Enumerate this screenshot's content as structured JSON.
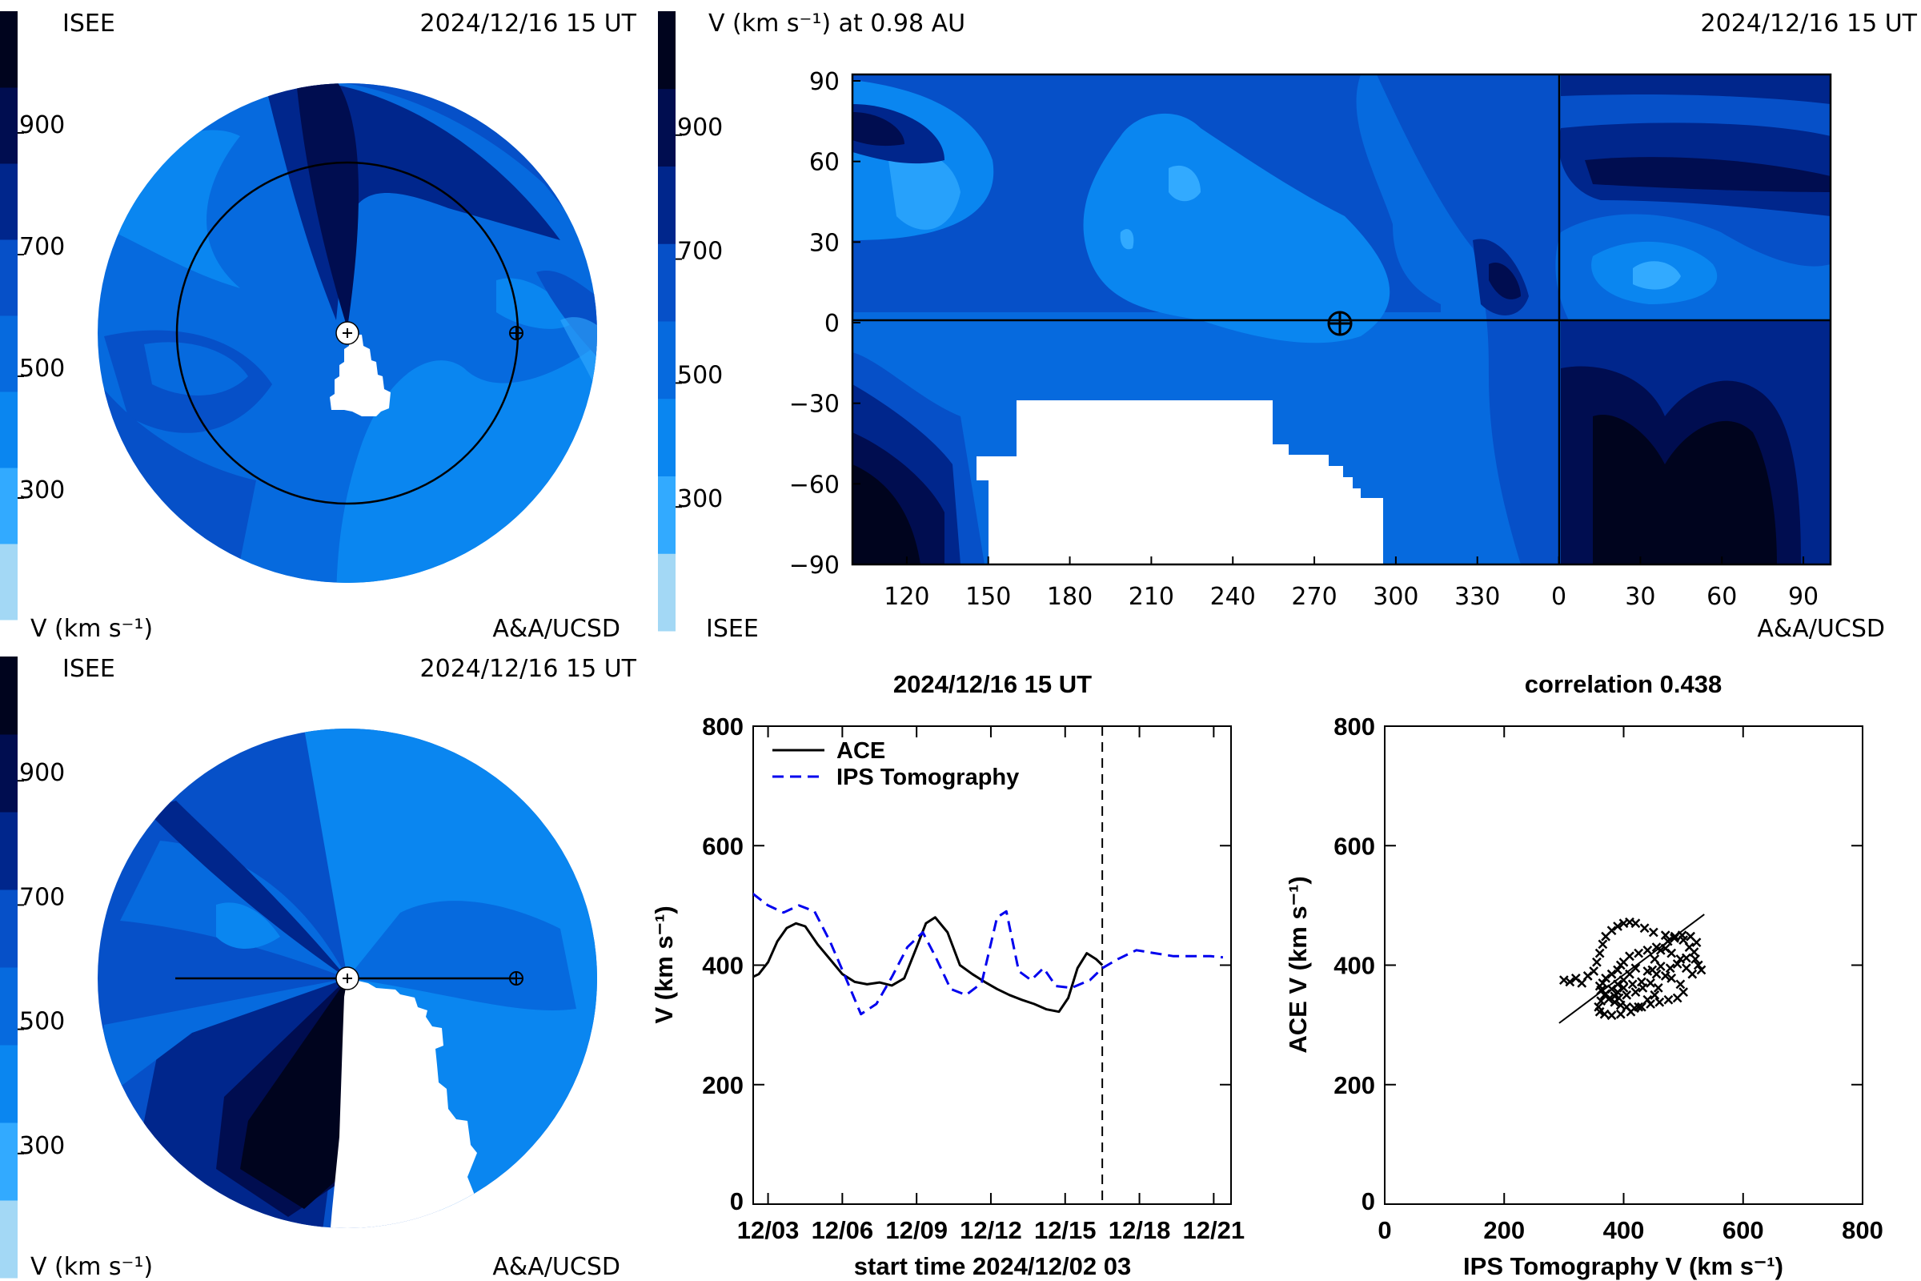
{
  "colorbar": {
    "colors": [
      "#a3d8f5",
      "#32aaff",
      "#0a86f0",
      "#066ade",
      "#0650c8",
      "#00268c",
      "#000d50",
      "#00041e"
    ],
    "tick_labels": [
      "300",
      "500",
      "700",
      "900"
    ],
    "tick_values": [
      300,
      500,
      700,
      900
    ]
  },
  "ecliptic_view": {
    "source": "ISEE",
    "timestamp": "2024/12/16 15 UT",
    "unit_label": "V (km s⁻¹)",
    "credit": "A&A/UCSD"
  },
  "meridional_view": {
    "source": "ISEE",
    "timestamp": "2024/12/16 15 UT",
    "unit_label": "V (km s⁻¹)",
    "credit": "A&A/UCSD"
  },
  "synoptic_map": {
    "title": "V (km s⁻¹) at 0.98 AU",
    "timestamp": "2024/12/16 15 UT",
    "source": "ISEE",
    "credit": "A&A/UCSD",
    "x_tick_labels": [
      "120",
      "150",
      "180",
      "210",
      "240",
      "270",
      "300",
      "330",
      "0",
      "30",
      "60",
      "90"
    ],
    "y_tick_labels": [
      "90",
      "60",
      "30",
      "0",
      "−30",
      "−60",
      "−90"
    ]
  },
  "chart_data": [
    {
      "type": "line",
      "title": "2024/12/16 15 UT",
      "xlabel": "start time 2024/12/02 03",
      "ylabel": "V (km s⁻¹)",
      "ylim": [
        0,
        800
      ],
      "xlim_days": [
        0.4,
        19.7
      ],
      "x_tick_labels": [
        "12/03",
        "12/06",
        "12/09",
        "12/12",
        "12/15",
        "12/18",
        "12/21"
      ],
      "x_tick_days": [
        1,
        4,
        7,
        10,
        13,
        16,
        19
      ],
      "y_ticks": [
        0,
        200,
        400,
        600,
        800
      ],
      "current_time_marker": "2024/12/16 15 UT",
      "legend_position": "top-left",
      "series": [
        {
          "name": "ACE",
          "style": "solid",
          "color": "#000000",
          "x": [
            "12/02 12",
            "12/02 18",
            "12/03 03",
            "12/03 12",
            "12/03 21",
            "12/04 06",
            "12/04 15",
            "12/05 03",
            "12/05 15",
            "12/06 03",
            "12/06 15",
            "12/07 03",
            "12/07 15",
            "12/08 03",
            "12/08 15",
            "12/09 03",
            "12/09 12",
            "12/09 21",
            "12/10 09",
            "12/10 21",
            "12/11 09",
            "12/11 21",
            "12/12 09",
            "12/12 21",
            "12/13 09",
            "12/13 21",
            "12/14 09",
            "12/14 21",
            "12/15 06",
            "12/15 15",
            "12/16 00",
            "12/16 09",
            "12/16 15"
          ],
          "values": [
            380,
            385,
            405,
            440,
            462,
            470,
            465,
            435,
            410,
            385,
            372,
            368,
            371,
            366,
            378,
            430,
            470,
            480,
            455,
            400,
            385,
            372,
            360,
            350,
            342,
            335,
            326,
            322,
            345,
            395,
            420,
            410,
            400
          ]
        },
        {
          "name": "IPS Tomography",
          "style": "dashed",
          "color": "#0000ee",
          "x": [
            "12/02 12",
            "12/03 03",
            "12/03 18",
            "12/04 09",
            "12/05 00",
            "12/05 15",
            "12/06 06",
            "12/06 21",
            "12/07 12",
            "12/08 03",
            "12/08 18",
            "12/09 09",
            "12/09 21",
            "12/10 12",
            "12/11 03",
            "12/11 18",
            "12/12 09",
            "12/12 18",
            "12/13 06",
            "12/13 18",
            "12/14 06",
            "12/14 18",
            "12/15 09",
            "12/16 03",
            "12/16 15",
            "12/17 06",
            "12/18 00",
            "12/18 18",
            "12/19 12",
            "12/20 06",
            "12/21 00",
            "12/21 12"
          ],
          "values": [
            520,
            500,
            488,
            500,
            490,
            440,
            380,
            318,
            335,
            380,
            430,
            455,
            415,
            360,
            350,
            370,
            480,
            490,
            390,
            375,
            395,
            365,
            362,
            375,
            395,
            410,
            425,
            420,
            415,
            415,
            415,
            413
          ]
        }
      ]
    },
    {
      "type": "scatter",
      "title": "correlation 0.438",
      "xlabel": "IPS Tomography V (km s⁻¹)",
      "ylabel": "ACE V (km s⁻¹)",
      "xlim": [
        0,
        800
      ],
      "ylim": [
        0,
        800
      ],
      "x_ticks": [
        0,
        200,
        400,
        600,
        800
      ],
      "y_ticks": [
        0,
        200,
        400,
        600,
        800
      ],
      "marker": "x",
      "points": [
        [
          300,
          375
        ],
        [
          310,
          372
        ],
        [
          320,
          378
        ],
        [
          330,
          370
        ],
        [
          340,
          382
        ],
        [
          350,
          390
        ],
        [
          355,
          405
        ],
        [
          360,
          420
        ],
        [
          365,
          435
        ],
        [
          370,
          448
        ],
        [
          380,
          458
        ],
        [
          390,
          465
        ],
        [
          400,
          470
        ],
        [
          410,
          472
        ],
        [
          420,
          470
        ],
        [
          435,
          462
        ],
        [
          450,
          455
        ],
        [
          470,
          450
        ],
        [
          485,
          445
        ],
        [
          500,
          442
        ],
        [
          510,
          430
        ],
        [
          520,
          410
        ],
        [
          525,
          400
        ],
        [
          530,
          392
        ],
        [
          515,
          385
        ],
        [
          505,
          395
        ],
        [
          495,
          410
        ],
        [
          480,
          420
        ],
        [
          470,
          428
        ],
        [
          455,
          430
        ],
        [
          440,
          425
        ],
        [
          425,
          420
        ],
        [
          410,
          415
        ],
        [
          400,
          405
        ],
        [
          395,
          400
        ],
        [
          390,
          392
        ],
        [
          380,
          385
        ],
        [
          370,
          378
        ],
        [
          365,
          370
        ],
        [
          360,
          365
        ],
        [
          362,
          358
        ],
        [
          368,
          350
        ],
        [
          375,
          343
        ],
        [
          385,
          338
        ],
        [
          395,
          333
        ],
        [
          405,
          330
        ],
        [
          418,
          328
        ],
        [
          430,
          330
        ],
        [
          445,
          335
        ],
        [
          460,
          338
        ],
        [
          475,
          342
        ],
        [
          490,
          345
        ],
        [
          500,
          355
        ],
        [
          495,
          368
        ],
        [
          480,
          378
        ],
        [
          470,
          382
        ],
        [
          455,
          385
        ],
        [
          440,
          390
        ],
        [
          420,
          395
        ],
        [
          410,
          385
        ],
        [
          400,
          375
        ],
        [
          390,
          368
        ],
        [
          380,
          360
        ],
        [
          370,
          352
        ],
        [
          362,
          340
        ],
        [
          358,
          330
        ],
        [
          360,
          322
        ],
        [
          368,
          318
        ],
        [
          380,
          316
        ],
        [
          395,
          318
        ],
        [
          412,
          322
        ],
        [
          425,
          330
        ],
        [
          440,
          342
        ],
        [
          452,
          350
        ],
        [
          458,
          362
        ],
        [
          445,
          370
        ],
        [
          430,
          372
        ],
        [
          415,
          368
        ],
        [
          400,
          362
        ],
        [
          390,
          355
        ],
        [
          385,
          348
        ],
        [
          392,
          345
        ],
        [
          405,
          350
        ],
        [
          420,
          355
        ],
        [
          432,
          362
        ],
        [
          448,
          392
        ],
        [
          462,
          398
        ],
        [
          478,
          395
        ],
        [
          490,
          402
        ],
        [
          505,
          412
        ],
        [
          518,
          422
        ],
        [
          522,
          438
        ],
        [
          512,
          448
        ],
        [
          498,
          450
        ],
        [
          486,
          448
        ],
        [
          474,
          440
        ],
        [
          462,
          425
        ],
        [
          452,
          410
        ]
      ],
      "fit_line": {
        "x": [
          292,
          535
        ],
        "y": [
          303,
          485
        ]
      }
    }
  ]
}
